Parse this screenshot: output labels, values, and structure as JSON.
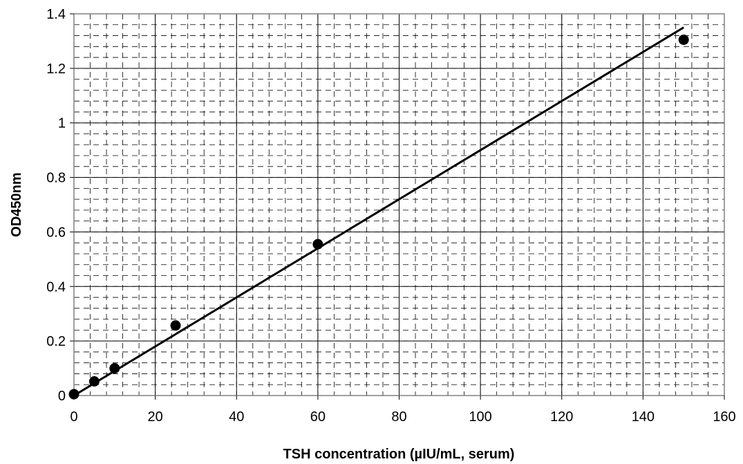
{
  "chart_data": {
    "type": "scatter",
    "title": "",
    "xlabel": "TSH concentration (µIU/mL, serum)",
    "ylabel": "OD450nm",
    "xlim": [
      0,
      160
    ],
    "ylim": [
      0,
      1.4
    ],
    "x_ticks": [
      "0",
      "20",
      "40",
      "60",
      "80",
      "100",
      "120",
      "140",
      "160"
    ],
    "y_ticks": [
      "0",
      "0.2",
      "0.4",
      "0.6",
      "0.8",
      "1",
      "1.2",
      "1.4"
    ],
    "grid": true,
    "legend": "none",
    "points": [
      {
        "x": 0,
        "y": 0.005
      },
      {
        "x": 5,
        "y": 0.052
      },
      {
        "x": 10,
        "y": 0.1
      },
      {
        "x": 25,
        "y": 0.257
      },
      {
        "x": 60,
        "y": 0.555
      },
      {
        "x": 150,
        "y": 1.305
      }
    ],
    "fit_line": {
      "x": [
        0,
        150
      ],
      "y": [
        0.0,
        1.35
      ]
    },
    "colors": {
      "marker": "#000000",
      "line": "#000000",
      "grid_major": "#000000",
      "grid_minor": "#000000"
    }
  }
}
